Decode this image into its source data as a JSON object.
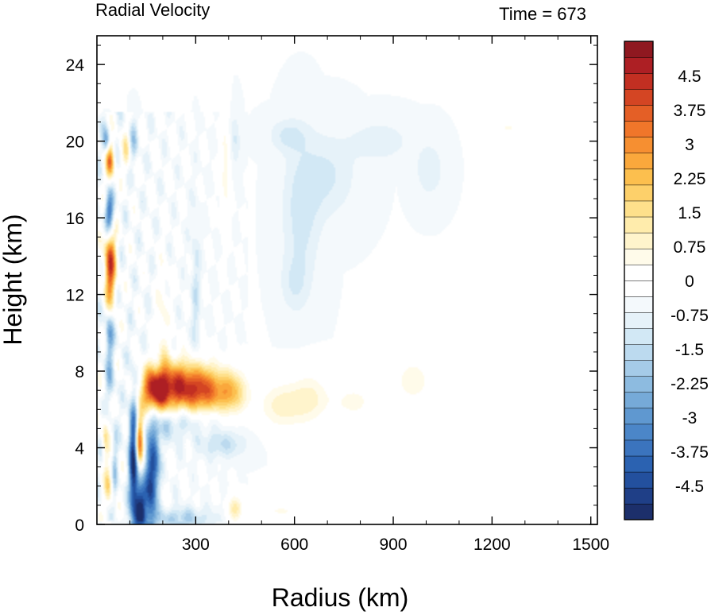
{
  "chart_data": {
    "type": "heatmap",
    "title_left": "Radial Velocity",
    "title_right": "Time = 673",
    "xlabel": "Radius (km)",
    "ylabel": "Height (km)",
    "xlim": [
      0,
      1520
    ],
    "ylim": [
      0,
      25.5
    ],
    "x_ticks": [
      300,
      600,
      900,
      1200,
      1500
    ],
    "x_tick_labels": [
      "300",
      "600",
      "900",
      "1200",
      "1500"
    ],
    "y_ticks": [
      0,
      4,
      8,
      12,
      16,
      20,
      24
    ],
    "y_tick_labels": [
      "0",
      "4",
      "8",
      "12",
      "16",
      "20",
      "24"
    ],
    "colorbar": {
      "min": -5.25,
      "max": 5.25,
      "step": 0.375,
      "colors": [
        "#1c2f6b",
        "#1f3f87",
        "#23509e",
        "#2b62b1",
        "#3b74be",
        "#4b86c8",
        "#5f98d0",
        "#76aad8",
        "#8dbbe0",
        "#a5cbe8",
        "#bcdaef",
        "#d2e8f5",
        "#e6f2f9",
        "#f4f9fc",
        "#ffffff",
        "#ffffff",
        "#fffbea",
        "#fff4cc",
        "#ffecac",
        "#fee08b",
        "#fdd06a",
        "#fcbf4e",
        "#faa83c",
        "#f68f31",
        "#f0762a",
        "#e45f26",
        "#d44523",
        "#c22f22",
        "#ad1f24",
        "#8f1820"
      ],
      "labels": [
        "4.5",
        "3.75",
        "3",
        "2.25",
        "1.5",
        "0.75",
        "0",
        "-0.75",
        "-1.5",
        "-2.25",
        "-3",
        "-3.75",
        "-4.5"
      ],
      "label_values": [
        4.5,
        3.75,
        3,
        2.25,
        1.5,
        0.75,
        0,
        -0.75,
        -1.5,
        -2.25,
        -3,
        -3.75,
        -4.5
      ]
    },
    "features": [
      {
        "x": 40,
        "y": 13.5,
        "sx": 12,
        "sy": 1.6,
        "v": 4.8
      },
      {
        "x": 40,
        "y": 19.0,
        "sx": 9,
        "sy": 0.7,
        "v": 3.8
      },
      {
        "x": 38,
        "y": 16.2,
        "sx": 10,
        "sy": 0.8,
        "v": -4.4
      },
      {
        "x": 30,
        "y": 20.0,
        "sx": 8,
        "sy": 0.5,
        "v": -2.5
      },
      {
        "x": 38,
        "y": 10.0,
        "sx": 10,
        "sy": 1.0,
        "v": -2.6
      },
      {
        "x": 40,
        "y": 7.5,
        "sx": 10,
        "sy": 0.8,
        "v": -1.4
      },
      {
        "x": 25,
        "y": 4.5,
        "sx": 7,
        "sy": 0.9,
        "v": 1.6
      },
      {
        "x": 35,
        "y": 2.0,
        "sx": 8,
        "sy": 0.8,
        "v": 1.8
      },
      {
        "x": 55,
        "y": 3.0,
        "sx": 6,
        "sy": 1.5,
        "v": -1.2
      },
      {
        "x": 90,
        "y": 19.5,
        "sx": 9,
        "sy": 0.8,
        "v": 1.5
      },
      {
        "x": 110,
        "y": 20.0,
        "sx": 10,
        "sy": 0.8,
        "v": -1.3
      },
      {
        "x": 112,
        "y": 3.3,
        "sx": 10,
        "sy": 2.4,
        "v": -5.2
      },
      {
        "x": 128,
        "y": 4.5,
        "sx": 9,
        "sy": 1.0,
        "v": 4.9
      },
      {
        "x": 133,
        "y": 0.8,
        "sx": 12,
        "sy": 1.0,
        "v": -4.8
      },
      {
        "x": 163,
        "y": 2.0,
        "sx": 12,
        "sy": 1.6,
        "v": -4.3
      },
      {
        "x": 178,
        "y": 3.5,
        "sx": 10,
        "sy": 1.2,
        "v": -2.6
      },
      {
        "x": 175,
        "y": 7.0,
        "sx": 30,
        "sy": 0.8,
        "v": 4.6
      },
      {
        "x": 240,
        "y": 7.2,
        "sx": 45,
        "sy": 0.9,
        "v": 4.3
      },
      {
        "x": 320,
        "y": 7.0,
        "sx": 40,
        "sy": 0.9,
        "v": 3.9
      },
      {
        "x": 405,
        "y": 6.9,
        "sx": 35,
        "sy": 0.8,
        "v": 2.8
      },
      {
        "x": 200,
        "y": 5.2,
        "sx": 50,
        "sy": 0.6,
        "v": -1.3
      },
      {
        "x": 300,
        "y": 5.6,
        "sx": 60,
        "sy": 0.5,
        "v": -1.0
      },
      {
        "x": 380,
        "y": 4.2,
        "sx": 50,
        "sy": 0.5,
        "v": -1.2
      },
      {
        "x": 250,
        "y": 0.3,
        "sx": 70,
        "sy": 0.4,
        "v": -1.5
      },
      {
        "x": 420,
        "y": 0.8,
        "sx": 15,
        "sy": 0.5,
        "v": 1.8
      },
      {
        "x": 200,
        "y": 10.5,
        "sx": 12,
        "sy": 2.0,
        "v": 1.0
      },
      {
        "x": 300,
        "y": 12.0,
        "sx": 10,
        "sy": 3.0,
        "v": -0.9
      },
      {
        "x": 390,
        "y": 18.5,
        "sx": 10,
        "sy": 2.0,
        "v": 1.0
      },
      {
        "x": 420,
        "y": 20.0,
        "sx": 10,
        "sy": 1.0,
        "v": -0.8
      },
      {
        "x": 560,
        "y": 6.2,
        "sx": 50,
        "sy": 0.9,
        "v": 1.3
      },
      {
        "x": 650,
        "y": 6.6,
        "sx": 40,
        "sy": 1.0,
        "v": 1.1
      },
      {
        "x": 780,
        "y": 6.4,
        "sx": 50,
        "sy": 0.7,
        "v": 0.9
      },
      {
        "x": 960,
        "y": 7.5,
        "sx": 40,
        "sy": 0.8,
        "v": 1.1
      },
      {
        "x": 620,
        "y": 16.0,
        "sx": 40,
        "sy": 2.5,
        "v": -0.9
      },
      {
        "x": 700,
        "y": 18.2,
        "sx": 60,
        "sy": 1.5,
        "v": -0.8
      },
      {
        "x": 860,
        "y": 20.0,
        "sx": 60,
        "sy": 0.7,
        "v": -0.7
      },
      {
        "x": 580,
        "y": 20.3,
        "sx": 40,
        "sy": 0.6,
        "v": -0.8
      },
      {
        "x": 600,
        "y": 12.5,
        "sx": 30,
        "sy": 1.0,
        "v": -0.6
      },
      {
        "x": 560,
        "y": 0.7,
        "sx": 50,
        "sy": 0.3,
        "v": 0.8
      },
      {
        "x": 1250,
        "y": 20.7,
        "sx": 25,
        "sy": 0.3,
        "v": 0.8
      },
      {
        "x": 1010,
        "y": 18.5,
        "sx": 30,
        "sy": 1.0,
        "v": -0.7
      }
    ]
  }
}
